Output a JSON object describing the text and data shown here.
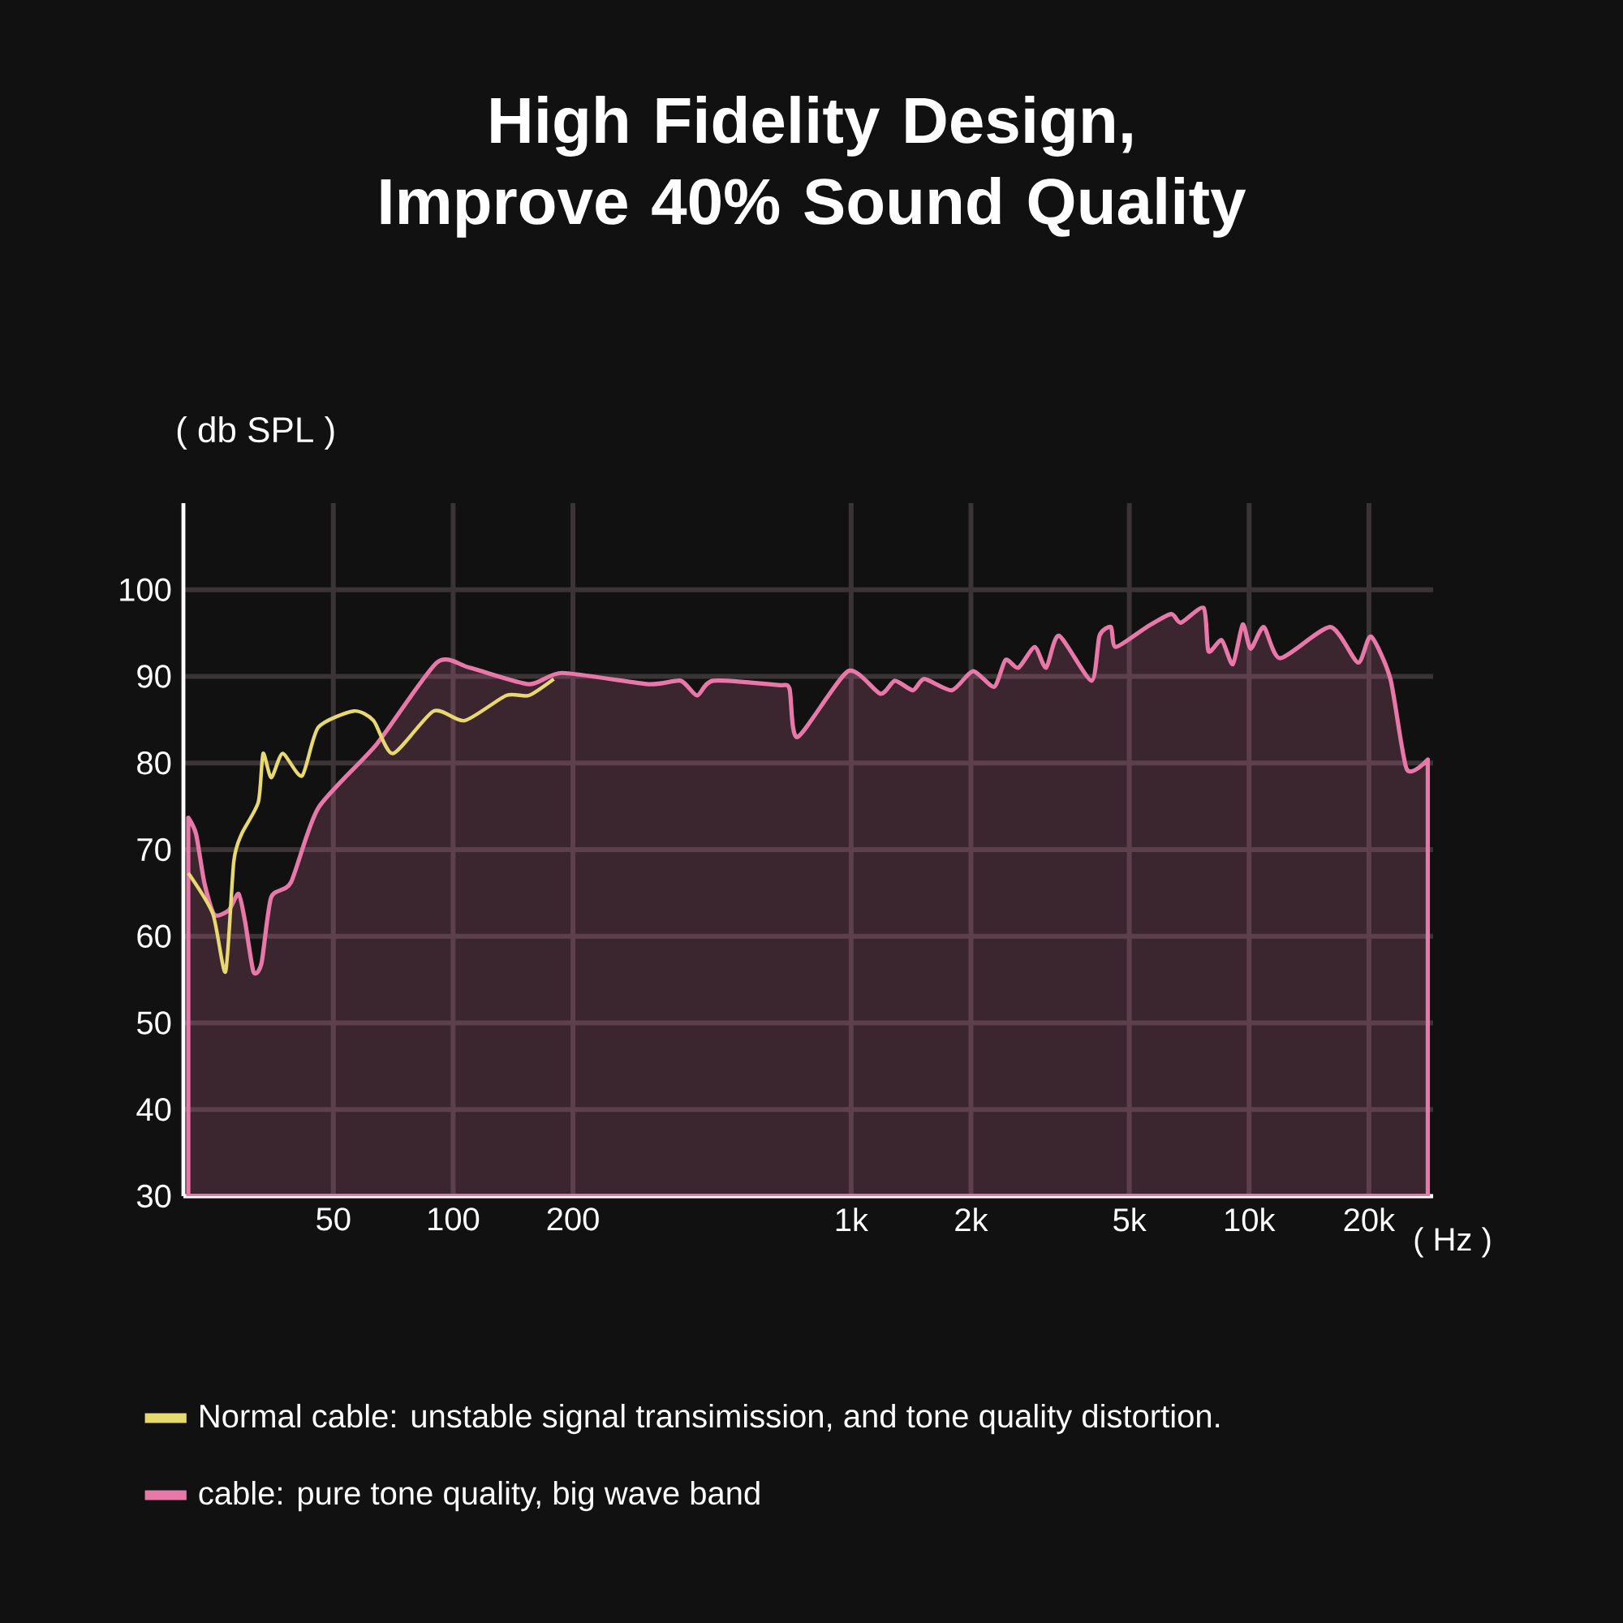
{
  "chart_data": {
    "type": "line",
    "title": "High Fidelity Design, Improve 40% Sound Quality",
    "xlabel": "( Hz )",
    "ylabel": "( db SPL )",
    "log": "x",
    "grid": true,
    "legend": "bottom",
    "xlim": [
      21,
      29000
    ],
    "ylim": [
      30,
      110
    ],
    "xticks": [
      {
        "value": 50,
        "label": "50"
      },
      {
        "value": 100,
        "label": "100"
      },
      {
        "value": 200,
        "label": "200"
      },
      {
        "value": 1000,
        "label": "1k"
      },
      {
        "value": 2000,
        "label": "2k"
      },
      {
        "value": 5000,
        "label": "5k"
      },
      {
        "value": 10000,
        "label": "10k"
      },
      {
        "value": 20000,
        "label": "20k"
      }
    ],
    "yticks": [
      30,
      40,
      50,
      60,
      70,
      80,
      90,
      100
    ],
    "series": [
      {
        "name": "Normal cable: unstable signal transimission, and tone quality distortion.",
        "type": "line",
        "color": "#e8d870",
        "x": [
          21.6,
          24.9,
          26.8,
          28.1,
          29.4,
          32.4,
          33.3,
          34.9,
          37.3,
          41.7,
          45.8,
          56.3,
          63.1,
          70.6,
          89.3,
          107,
          136,
          155,
          179
        ],
        "values": [
          67.3,
          62.6,
          55.9,
          68.6,
          71.8,
          75.5,
          81.1,
          78.3,
          81.1,
          78.5,
          84.1,
          86.0,
          84.9,
          81.1,
          86.0,
          84.9,
          87.8,
          87.8,
          89.7
        ]
      },
      {
        "name": "cable: pure tone quality, big wave band",
        "type": "area",
        "color": "#e878a8",
        "x": [
          21.6,
          22.6,
          23.7,
          25.1,
          27.3,
          28.9,
          30.0,
          31.5,
          33.0,
          34.9,
          39.1,
          45.8,
          64.3,
          91,
          110,
          155,
          188,
          309,
          373,
          410,
          450,
          655,
          700,
          733,
          982,
          1184,
          1288,
          1429,
          1527,
          1791,
          2023,
          2287,
          2443,
          2632,
          2893,
          3090,
          3327,
          4017,
          4209,
          4497,
          4624,
          5531,
          6368,
          6738,
          7691,
          7907,
          8531,
          9101,
          9638,
          10090,
          10885,
          11967,
          16000,
          18770,
          20230,
          22650,
          24890,
          28120
        ],
        "values": [
          73.7,
          71.8,
          66.2,
          62.5,
          63.0,
          64.9,
          61.7,
          55.9,
          56.9,
          64.5,
          66.2,
          74.8,
          82.2,
          91.6,
          91.0,
          89.1,
          90.4,
          89.1,
          89.5,
          87.8,
          89.5,
          89.0,
          88.6,
          83.0,
          90.6,
          88.0,
          89.5,
          88.4,
          89.7,
          88.4,
          90.6,
          88.8,
          91.9,
          91.0,
          93.4,
          91.0,
          94.7,
          89.5,
          94.7,
          95.7,
          93.4,
          95.7,
          97.2,
          96.2,
          97.9,
          92.9,
          94.2,
          91.4,
          96.0,
          93.2,
          95.7,
          92.1,
          95.7,
          91.6,
          94.6,
          89.7,
          79.3,
          80.4
        ]
      }
    ]
  }
}
